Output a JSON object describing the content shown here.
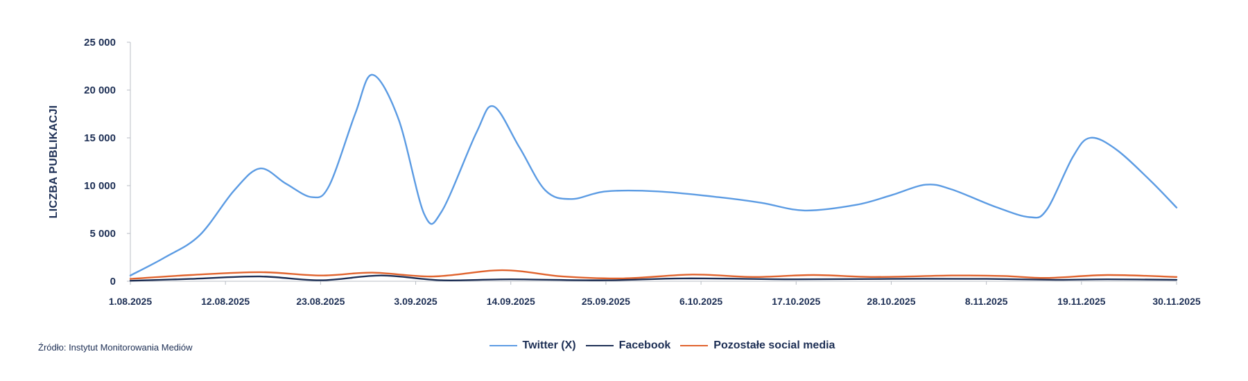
{
  "chart_data": {
    "type": "line",
    "ylabel": "LICZBA PUBLIKACJI",
    "ylim": [
      0,
      25000
    ],
    "yticks": [
      0,
      5000,
      10000,
      15000,
      20000,
      25000
    ],
    "ytick_labels": [
      "0",
      "5 000",
      "10 000",
      "15 000",
      "20 000",
      "25 000"
    ],
    "xlim": [
      "1.08.2025",
      "30.11.2025"
    ],
    "xtick_labels": [
      "1.08.2025",
      "12.08.2025",
      "23.08.2025",
      "3.09.2025",
      "14.09.2025",
      "25.09.2025",
      "6.10.2025",
      "17.10.2025",
      "28.10.2025",
      "8.11.2025",
      "19.11.2025",
      "30.11.2025"
    ],
    "legend_position": "bottom",
    "grid": false,
    "series": [
      {
        "name": "Twitter (X)",
        "color": "#5b9be3",
        "points": [
          [
            "1.08.2025",
            600
          ],
          [
            "5.08.2025",
            2500
          ],
          [
            "9.08.2025",
            4800
          ],
          [
            "13.08.2025",
            9500
          ],
          [
            "16.08.2025",
            11800
          ],
          [
            "19.08.2025",
            10200
          ],
          [
            "22.08.2025",
            8800
          ],
          [
            "24.08.2025",
            10000
          ],
          [
            "27.08.2025",
            17500
          ],
          [
            "29.08.2025",
            21600
          ],
          [
            "1.09.2025",
            17000
          ],
          [
            "4.09.2025",
            7000
          ],
          [
            "6.09.2025",
            7300
          ],
          [
            "10.09.2025",
            15500
          ],
          [
            "12.09.2025",
            18300
          ],
          [
            "15.09.2025",
            14000
          ],
          [
            "18.09.2025",
            9500
          ],
          [
            "21.09.2025",
            8600
          ],
          [
            "25.09.2025",
            9400
          ],
          [
            "1.10.2025",
            9400
          ],
          [
            "8.10.2025",
            8800
          ],
          [
            "13.10.2025",
            8200
          ],
          [
            "18.10.2025",
            7400
          ],
          [
            "24.10.2025",
            8000
          ],
          [
            "28.10.2025",
            9000
          ],
          [
            "1.11.2025",
            10100
          ],
          [
            "4.11.2025",
            9600
          ],
          [
            "9.11.2025",
            7800
          ],
          [
            "13.11.2025",
            6700
          ],
          [
            "15.11.2025",
            7500
          ],
          [
            "18.11.2025",
            13000
          ],
          [
            "20.11.2025",
            15000
          ],
          [
            "23.11.2025",
            13800
          ],
          [
            "27.11.2025",
            10500
          ],
          [
            "30.11.2025",
            7700
          ]
        ]
      },
      {
        "name": "Facebook",
        "color": "#1c2e54",
        "points": [
          [
            "1.08.2025",
            50
          ],
          [
            "8.08.2025",
            250
          ],
          [
            "16.08.2025",
            500
          ],
          [
            "23.08.2025",
            100
          ],
          [
            "30.08.2025",
            600
          ],
          [
            "6.09.2025",
            100
          ],
          [
            "14.09.2025",
            200
          ],
          [
            "25.09.2025",
            100
          ],
          [
            "4.10.2025",
            300
          ],
          [
            "17.10.2025",
            200
          ],
          [
            "28.10.2025",
            250
          ],
          [
            "8.11.2025",
            250
          ],
          [
            "16.11.2025",
            150
          ],
          [
            "22.11.2025",
            200
          ],
          [
            "30.11.2025",
            150
          ]
        ]
      },
      {
        "name": "Pozostałe social media",
        "color": "#e0622c",
        "points": [
          [
            "1.08.2025",
            250
          ],
          [
            "8.08.2025",
            650
          ],
          [
            "16.08.2025",
            950
          ],
          [
            "23.08.2025",
            600
          ],
          [
            "29.08.2025",
            900
          ],
          [
            "5.09.2025",
            500
          ],
          [
            "13.09.2025",
            1150
          ],
          [
            "20.09.2025",
            500
          ],
          [
            "27.09.2025",
            300
          ],
          [
            "5.10.2025",
            700
          ],
          [
            "12.10.2025",
            450
          ],
          [
            "19.10.2025",
            650
          ],
          [
            "26.10.2025",
            450
          ],
          [
            "4.11.2025",
            600
          ],
          [
            "10.11.2025",
            550
          ],
          [
            "15.11.2025",
            350
          ],
          [
            "22.11.2025",
            650
          ],
          [
            "30.11.2025",
            450
          ]
        ]
      }
    ]
  },
  "source_text": "Źródło: Instytut Monitorowania Mediów"
}
